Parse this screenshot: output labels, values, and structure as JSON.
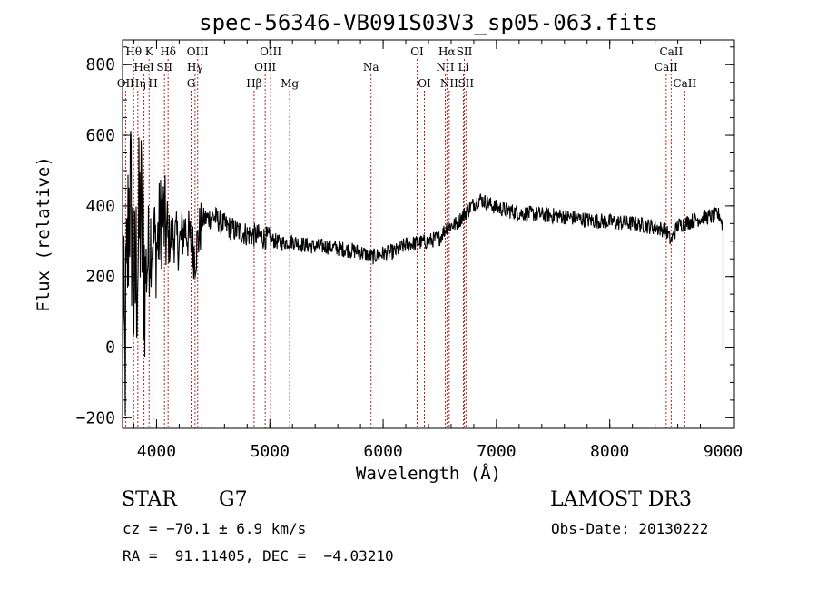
{
  "chart_data": {
    "type": "line",
    "title": "spec-56346-VB091S03V3_sp05-063.fits",
    "xlabel": "Wavelength (Å)",
    "ylabel": "Flux (relative)",
    "xlim": [
      3700,
      9100
    ],
    "ylim": [
      -230,
      870
    ],
    "xticks": [
      4000,
      5000,
      6000,
      7000,
      8000,
      9000
    ],
    "yticks": [
      -200,
      0,
      200,
      400,
      600,
      800
    ],
    "xtick_labels": [
      "4000",
      "5000",
      "6000",
      "7000",
      "8000",
      "9000"
    ],
    "ytick_labels": [
      "−200",
      "0",
      "200",
      "400",
      "600",
      "800"
    ],
    "line_color": "#000000",
    "line_marker_color": "#b22222",
    "spectrum_anchors": [
      [
        3700,
        120
      ],
      [
        3720,
        -50
      ],
      [
        3740,
        220
      ],
      [
        3760,
        450
      ],
      [
        3780,
        350
      ],
      [
        3800,
        120
      ],
      [
        3830,
        250
      ],
      [
        3860,
        380
      ],
      [
        3900,
        200
      ],
      [
        3950,
        320
      ],
      [
        4000,
        280
      ],
      [
        4050,
        380
      ],
      [
        4100,
        300
      ],
      [
        4150,
        320
      ],
      [
        4200,
        290
      ],
      [
        4250,
        340
      ],
      [
        4300,
        300
      ],
      [
        4340,
        260
      ],
      [
        4400,
        360
      ],
      [
        4500,
        370
      ],
      [
        4600,
        345
      ],
      [
        4700,
        330
      ],
      [
        4800,
        320
      ],
      [
        4900,
        315
      ],
      [
        5000,
        305
      ],
      [
        5100,
        295
      ],
      [
        5200,
        300
      ],
      [
        5300,
        290
      ],
      [
        5400,
        285
      ],
      [
        5500,
        285
      ],
      [
        5600,
        280
      ],
      [
        5700,
        275
      ],
      [
        5800,
        270
      ],
      [
        5900,
        255
      ],
      [
        6000,
        265
      ],
      [
        6100,
        270
      ],
      [
        6200,
        290
      ],
      [
        6300,
        295
      ],
      [
        6400,
        300
      ],
      [
        6500,
        310
      ],
      [
        6560,
        340
      ],
      [
        6650,
        350
      ],
      [
        6750,
        390
      ],
      [
        6850,
        420
      ],
      [
        7000,
        395
      ],
      [
        7200,
        380
      ],
      [
        7400,
        375
      ],
      [
        7600,
        370
      ],
      [
        7800,
        360
      ],
      [
        8000,
        355
      ],
      [
        8200,
        350
      ],
      [
        8400,
        340
      ],
      [
        8500,
        330
      ],
      [
        8540,
        300
      ],
      [
        8600,
        345
      ],
      [
        8700,
        355
      ],
      [
        8800,
        365
      ],
      [
        8900,
        370
      ],
      [
        8970,
        375
      ],
      [
        9000,
        340
      ]
    ],
    "lines": [
      {
        "label": "Hθ",
        "x": 3798,
        "row": 1
      },
      {
        "label": "OII",
        "x": 3727,
        "row": 3
      },
      {
        "label": "K",
        "x": 3934,
        "row": 1
      },
      {
        "label": "HeI",
        "x": 3889,
        "row": 2
      },
      {
        "label": "Hη",
        "x": 3835,
        "row": 3
      },
      {
        "label": "H",
        "x": 3969,
        "row": 3
      },
      {
        "label": "SII",
        "x": 4070,
        "row": 2
      },
      {
        "label": "Hδ",
        "x": 4102,
        "row": 1
      },
      {
        "label": "OIII",
        "x": 4363,
        "row": 1
      },
      {
        "label": "Hγ",
        "x": 4340,
        "row": 2
      },
      {
        "label": "G",
        "x": 4305,
        "row": 3
      },
      {
        "label": "Hβ",
        "x": 4861,
        "row": 3
      },
      {
        "label": "OIII",
        "x": 5007,
        "row": 1
      },
      {
        "label": "OIII",
        "x": 4959,
        "row": 2
      },
      {
        "label": "Mg",
        "x": 5175,
        "row": 3
      },
      {
        "label": "Na",
        "x": 5893,
        "row": 2
      },
      {
        "label": "OI",
        "x": 6300,
        "row": 1
      },
      {
        "label": "OI",
        "x": 6364,
        "row": 3
      },
      {
        "label": "Hα",
        "x": 6563,
        "row": 1
      },
      {
        "label": "NII",
        "x": 6548,
        "row": 2
      },
      {
        "label": "NII",
        "x": 6583,
        "row": 3
      },
      {
        "label": "SII",
        "x": 6717,
        "row": 1
      },
      {
        "label": "Li",
        "x": 6708,
        "row": 2
      },
      {
        "label": "SII",
        "x": 6731,
        "row": 3
      },
      {
        "label": "CaII",
        "x": 8542,
        "row": 1
      },
      {
        "label": "CaII",
        "x": 8498,
        "row": 2
      },
      {
        "label": "CaII",
        "x": 8662,
        "row": 3
      }
    ]
  },
  "info": {
    "object_class": "STAR",
    "subclass": "G7",
    "survey": "LAMOST DR3",
    "cz": "cz = −70.1 ± 6.9 km/s",
    "obs_date": "Obs-Date: 20130222",
    "radec": "RA =  91.11405, DEC =  −4.03210"
  }
}
